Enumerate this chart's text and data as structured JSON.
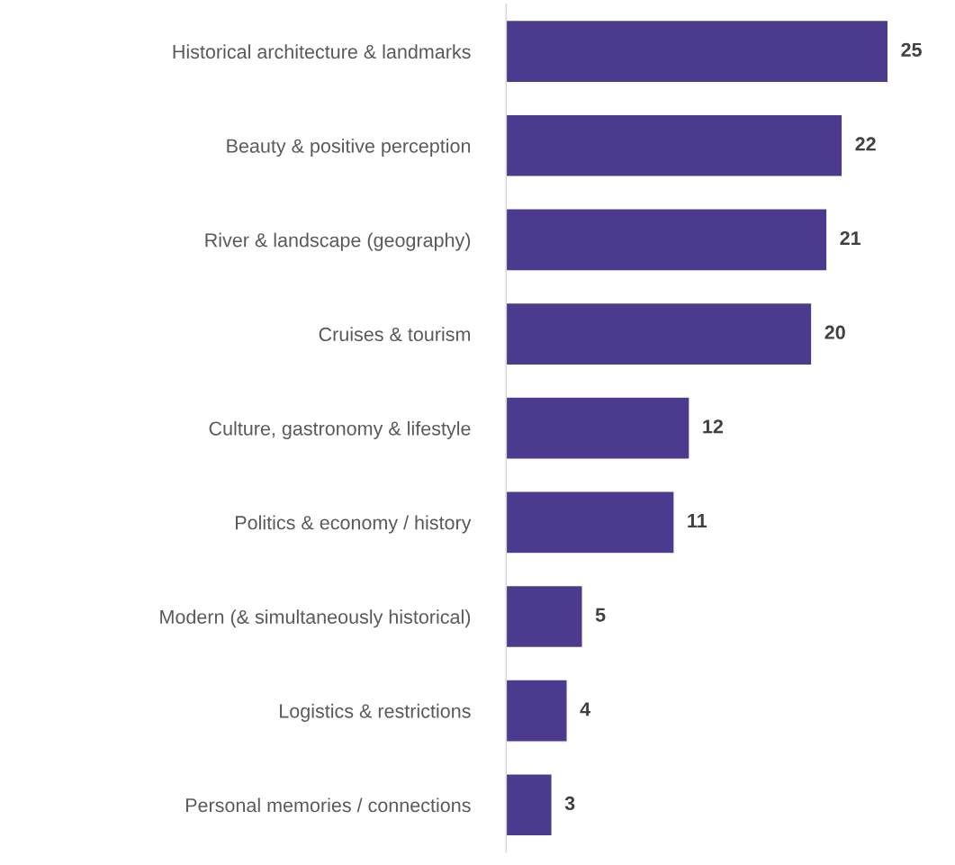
{
  "chart_data": {
    "type": "bar",
    "orientation": "horizontal",
    "categories": [
      "Historical architecture & landmarks",
      "Beauty & positive perception",
      "River & landscape (geography)",
      "Cruises & tourism",
      "Culture, gastronomy & lifestyle",
      "Politics & economy / history",
      "Modern (& simultaneously historical)",
      "Logistics & restrictions",
      "Personal memories / connections"
    ],
    "values": [
      25,
      22,
      21,
      20,
      12,
      11,
      5,
      4,
      3
    ],
    "color": "#4b3a8e",
    "data_labels": true,
    "grid": false,
    "legend": false
  }
}
